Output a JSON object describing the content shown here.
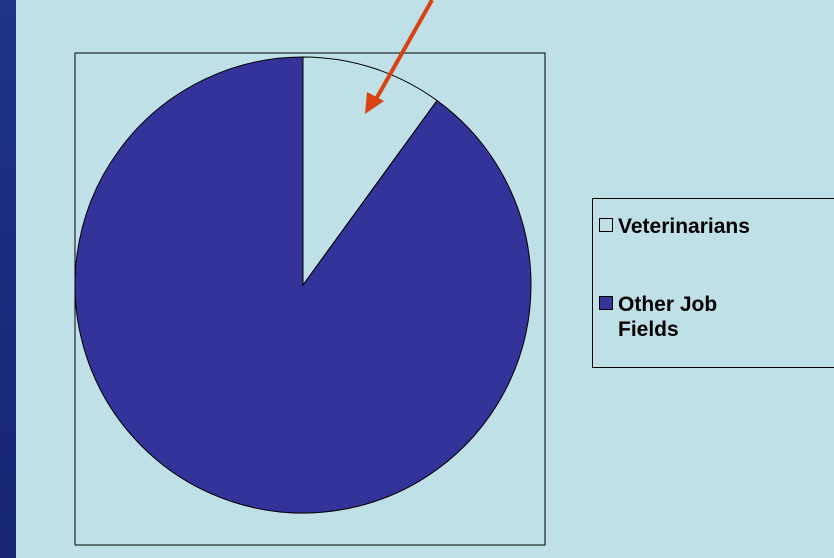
{
  "chart_data": {
    "type": "pie",
    "title": "",
    "slices": [
      {
        "label": "Veterinarians",
        "value": 10,
        "color": "#bfe0e6"
      },
      {
        "label": "Other Job Fields",
        "value": 90,
        "color": "#333399"
      }
    ],
    "start_angle_deg": 0,
    "direction": "clockwise",
    "legend_position": "right",
    "annotation": {
      "type": "arrow",
      "color": "#d84315",
      "target": "Veterinarians"
    }
  },
  "colors": {
    "slide_background": "#1a2c7e",
    "panel_background": "#bfe0e6"
  }
}
